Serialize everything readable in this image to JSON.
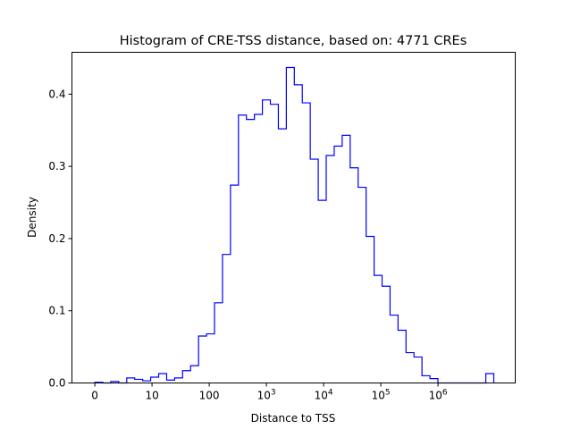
{
  "chart_data": {
    "type": "histogram-step",
    "title": "Histogram of CRE-TSS distance, based on: 4771 CREs",
    "xlabel": "Distance to TSS",
    "ylabel": "Density",
    "x_scale": "log10(distance), 0 at origin",
    "xlim": [
      -0.4,
      7.35
    ],
    "ylim": [
      0,
      0.458
    ],
    "bin_start": 0,
    "bin_width": 0.1395,
    "densities": [
      0.001,
      0,
      0.002,
      0,
      0.007,
      0.005,
      0.003,
      0.008,
      0.013,
      0.004,
      0.007,
      0.017,
      0.024,
      0.065,
      0.068,
      0.111,
      0.178,
      0.274,
      0.371,
      0.365,
      0.372,
      0.392,
      0.386,
      0.352,
      0.437,
      0.413,
      0.388,
      0.31,
      0.253,
      0.315,
      0.328,
      0.343,
      0.298,
      0.271,
      0.203,
      0.149,
      0.134,
      0.094,
      0.073,
      0.042,
      0.036,
      0.01,
      0.006,
      0,
      0,
      0,
      0,
      0,
      0,
      0.013
    ],
    "line_color": "#0000ff",
    "x_ticks": [
      {
        "value": 0,
        "base": "0",
        "sup": ""
      },
      {
        "value": 1,
        "base": "10",
        "sup": ""
      },
      {
        "value": 2,
        "base": "100",
        "sup": ""
      },
      {
        "value": 3,
        "base": "10",
        "sup": "3"
      },
      {
        "value": 4,
        "base": "10",
        "sup": "4"
      },
      {
        "value": 5,
        "base": "10",
        "sup": "5"
      },
      {
        "value": 6,
        "base": "10",
        "sup": "6"
      }
    ],
    "y_ticks": [
      {
        "value": 0,
        "label": "0.0"
      },
      {
        "value": 0.1,
        "label": "0.1"
      },
      {
        "value": 0.2,
        "label": "0.2"
      },
      {
        "value": 0.3,
        "label": "0.3"
      },
      {
        "value": 0.4,
        "label": "0.4"
      }
    ]
  }
}
